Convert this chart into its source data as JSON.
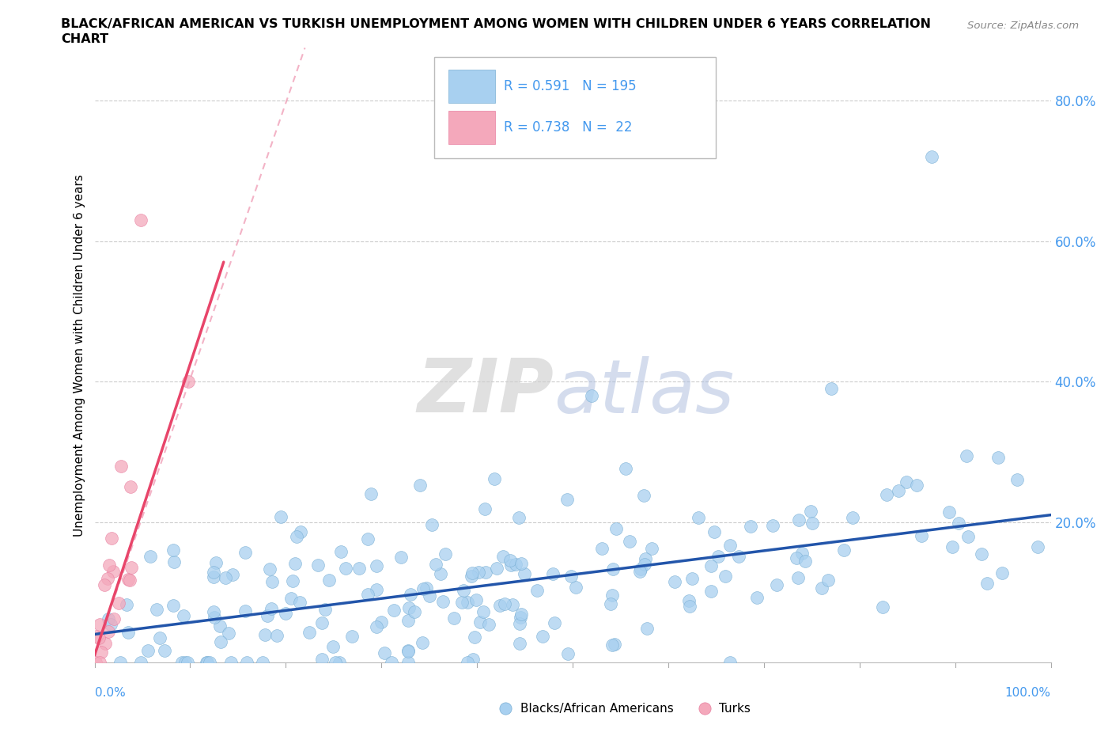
{
  "title_line1": "BLACK/AFRICAN AMERICAN VS TURKISH UNEMPLOYMENT AMONG WOMEN WITH CHILDREN UNDER 6 YEARS CORRELATION",
  "title_line2": "CHART",
  "source": "Source: ZipAtlas.com",
  "ylabel": "Unemployment Among Women with Children Under 6 years",
  "legend": {
    "blue_R": "0.591",
    "blue_N": "195",
    "pink_R": "0.738",
    "pink_N": "22"
  },
  "blue_color": "#A8D0F0",
  "blue_edge_color": "#7AAFD4",
  "pink_color": "#F4A8BB",
  "pink_edge_color": "#E87FA0",
  "blue_line_color": "#2255AA",
  "pink_line_color": "#E8456A",
  "pink_dash_color": "#F0A0B8",
  "ytick_color": "#4499EE",
  "xlim": [
    0,
    1.0
  ],
  "ylim": [
    0,
    0.875
  ],
  "yticks": [
    0.0,
    0.2,
    0.4,
    0.6,
    0.8
  ],
  "ytick_labels": [
    "",
    "20.0%",
    "40.0%",
    "60.0%",
    "80.0%"
  ],
  "grid_color": "#CCCCCC",
  "watermark_zip_color": "#CCCCCC",
  "watermark_atlas_color": "#BBCCEE"
}
